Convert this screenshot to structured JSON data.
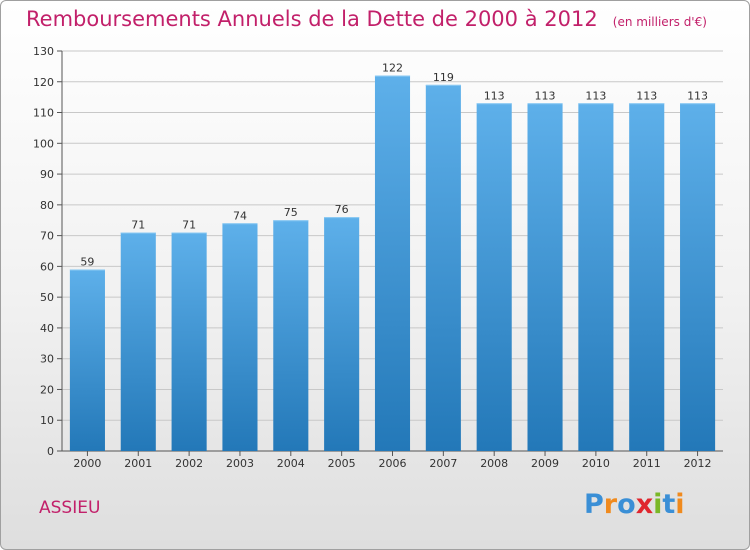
{
  "title": "Remboursements Annuels de la Dette de 2000 à 2012",
  "unit": "(en milliers d'€)",
  "commune": "ASSIEU",
  "logo": {
    "text": "Proxiti",
    "letters": [
      "P",
      "r",
      "o",
      "x",
      "i",
      "t",
      "i"
    ],
    "colors": [
      "#3a8fd6",
      "#f08a1d",
      "#3a8fd6",
      "#e0262e",
      "#7ab828",
      "#3a8fd6",
      "#f08a1d"
    ]
  },
  "colors": {
    "title": "#c2206a",
    "bar_top": "#5eb0ea",
    "bar_bottom": "#2378b8",
    "grid": "#c8c8c8"
  },
  "chart_data": {
    "type": "bar",
    "title": "Remboursements Annuels de la Dette de 2000 à 2012",
    "ylabel": "",
    "xlabel": "",
    "ylim": [
      0,
      130
    ],
    "ytick_step": 10,
    "grid": true,
    "categories": [
      "2000",
      "2001",
      "2002",
      "2003",
      "2004",
      "2005",
      "2006",
      "2007",
      "2008",
      "2009",
      "2010",
      "2011",
      "2012"
    ],
    "values": [
      59,
      71,
      71,
      74,
      75,
      76,
      122,
      119,
      113,
      113,
      113,
      113,
      113
    ]
  }
}
